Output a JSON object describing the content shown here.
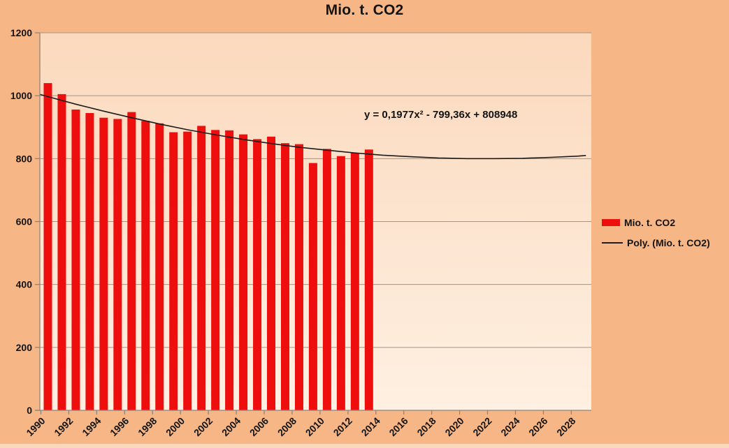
{
  "chart_data": {
    "type": "bar",
    "title": "Mio. t. CO2",
    "x": [
      1990,
      1991,
      1992,
      1993,
      1994,
      1995,
      1996,
      1997,
      1998,
      1999,
      2000,
      2001,
      2002,
      2003,
      2004,
      2005,
      2006,
      2007,
      2008,
      2009,
      2010,
      2011,
      2012,
      2013
    ],
    "series": [
      {
        "name": "Mio. t. CO2",
        "values": [
          1040,
          1005,
          956,
          945,
          930,
          926,
          948,
          920,
          912,
          884,
          886,
          904,
          891,
          890,
          877,
          862,
          870,
          849,
          846,
          786,
          831,
          808,
          818,
          829
        ]
      }
    ],
    "trendline": {
      "name": "Poly. (Mio. t. CO2)",
      "equation_label": "y = 0,1977x² - 799,36x + 808948",
      "points": [
        [
          1989.45,
          1004
        ],
        [
          1990,
          997
        ],
        [
          1992,
          973
        ],
        [
          1994,
          951
        ],
        [
          1996,
          930
        ],
        [
          1998,
          910
        ],
        [
          2000,
          892
        ],
        [
          2002,
          876
        ],
        [
          2004,
          861
        ],
        [
          2006,
          848
        ],
        [
          2008,
          836
        ],
        [
          2010,
          827
        ],
        [
          2012,
          818
        ],
        [
          2014,
          811
        ],
        [
          2016,
          806
        ],
        [
          2018,
          802
        ],
        [
          2020,
          800
        ],
        [
          2022,
          800
        ],
        [
          2024,
          801
        ],
        [
          2026,
          804
        ],
        [
          2028,
          808
        ],
        [
          2028.55,
          810
        ]
      ]
    },
    "xlabel": "",
    "ylabel": "",
    "ylim": [
      0,
      1200
    ],
    "yticks": [
      0,
      200,
      400,
      600,
      800,
      1000,
      1200
    ],
    "xticks": [
      1990,
      1992,
      1994,
      1996,
      1998,
      2000,
      2002,
      2004,
      2006,
      2008,
      2010,
      2012,
      2014,
      2016,
      2018,
      2020,
      2022,
      2024,
      2026,
      2028
    ],
    "grid": true,
    "legend_position": "right",
    "legend": [
      {
        "label": "Mio. t. CO2",
        "marker": "bar"
      },
      {
        "label": "Poly. (Mio. t. CO2)",
        "marker": "line"
      }
    ]
  },
  "colors": {
    "background": "#F7B685",
    "plot_top": "#FBD9BD",
    "plot_bottom": "#FEF0E2",
    "bar": "#EF0E0E",
    "trendline": "#1C1C1C",
    "gridline": "#A09589",
    "axis": "#90857A",
    "text": "#141414",
    "bottom_strip": "#FBD8BC"
  }
}
